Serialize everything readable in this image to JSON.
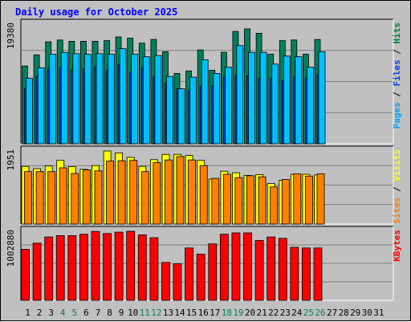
{
  "title": "Daily usage for October 2025",
  "day_labels": [
    "1",
    "2",
    "3",
    "4",
    "5",
    "6",
    "7",
    "8",
    "9",
    "10",
    "11",
    "12",
    "13",
    "14",
    "15",
    "16",
    "17",
    "18",
    "19",
    "20",
    "21",
    "22",
    "23",
    "24",
    "25",
    "26",
    "27",
    "28",
    "29",
    "30",
    "31"
  ],
  "weekend_days": [
    "4",
    "5",
    "11",
    "12",
    "18",
    "19",
    "25",
    "26"
  ],
  "right_axis": {
    "panel1": [
      {
        "text": "Pages",
        "color": "#00a0ff"
      },
      {
        "text": " / ",
        "color": "#000000"
      },
      {
        "text": "Files",
        "color": "#0040ff"
      },
      {
        "text": " / ",
        "color": "#000000"
      },
      {
        "text": "Hits",
        "color": "#008040"
      }
    ],
    "panel2": [
      {
        "text": "Sites",
        "color": "#ff8000"
      },
      {
        "text": " / ",
        "color": "#000000"
      },
      {
        "text": "Visits",
        "color": "#ffff00"
      }
    ],
    "panel3": [
      {
        "text": "KBytes",
        "color": "#ff0000"
      }
    ]
  },
  "colors": {
    "hits": "#00805c",
    "files": "#0040ff",
    "pages": "#00c0ff",
    "visits": "#ffff00",
    "sites": "#ff8000",
    "kbytes": "#ff0000",
    "title": "#0000ff",
    "weekend": "#00805c",
    "background": "#c0c0c0"
  },
  "chart_data": [
    {
      "type": "bar",
      "ylabel": "19380",
      "ylim": [
        0,
        19380
      ],
      "categories": [
        "1",
        "2",
        "3",
        "4",
        "5",
        "6",
        "7",
        "8",
        "9",
        "10",
        "11",
        "12",
        "13",
        "14",
        "15",
        "16",
        "17",
        "18",
        "19",
        "20",
        "21",
        "22",
        "23",
        "24",
        "25",
        "26"
      ],
      "series": [
        {
          "name": "Hits",
          "values": [
            12600,
            14400,
            16500,
            16800,
            16600,
            16600,
            16600,
            16700,
            17300,
            17100,
            16300,
            16900,
            14900,
            11400,
            11800,
            15200,
            11900,
            14800,
            18200,
            18600,
            17900,
            14500,
            16700,
            16800,
            14500,
            16900
          ]
        },
        {
          "name": "Files",
          "values": [
            9000,
            10900,
            12000,
            12400,
            11900,
            12100,
            12500,
            11900,
            12800,
            11600,
            12300,
            10800,
            9800,
            8900,
            8600,
            9300,
            9400,
            10900,
            11100,
            11000,
            10600,
            10600,
            10200,
            10800,
            10600,
            11200
          ]
        },
        {
          "name": "Pages",
          "values": [
            10600,
            12300,
            14500,
            14800,
            14600,
            14500,
            14600,
            14500,
            15400,
            14500,
            14100,
            14300,
            10900,
            8900,
            10800,
            13600,
            11400,
            12400,
            15900,
            14800,
            14800,
            12900,
            14200,
            14100,
            12400,
            14900
          ]
        }
      ]
    },
    {
      "type": "bar",
      "ylabel": "1951",
      "ylim": [
        0,
        1951
      ],
      "categories": [
        "1",
        "2",
        "3",
        "4",
        "5",
        "6",
        "7",
        "8",
        "9",
        "10",
        "11",
        "12",
        "13",
        "14",
        "15",
        "16",
        "17",
        "18",
        "19",
        "20",
        "21",
        "22",
        "23",
        "24",
        "25",
        "26"
      ],
      "series": [
        {
          "name": "Visits",
          "values": [
            1540,
            1480,
            1550,
            1700,
            1530,
            1460,
            1560,
            1950,
            1900,
            1780,
            1540,
            1720,
            1860,
            1860,
            1830,
            1700,
            1200,
            1410,
            1370,
            1300,
            1320,
            1080,
            1170,
            1330,
            1330,
            1310
          ]
        },
        {
          "name": "Sites",
          "values": [
            1400,
            1400,
            1400,
            1500,
            1350,
            1450,
            1420,
            1680,
            1690,
            1700,
            1400,
            1640,
            1710,
            1800,
            1710,
            1560,
            1220,
            1330,
            1240,
            1290,
            1260,
            990,
            1190,
            1340,
            1280,
            1340
          ]
        }
      ]
    },
    {
      "type": "bar",
      "ylabel": "1002880",
      "ylim": [
        0,
        1002880
      ],
      "categories": [
        "1",
        "2",
        "3",
        "4",
        "5",
        "6",
        "7",
        "8",
        "9",
        "10",
        "11",
        "12",
        "13",
        "14",
        "15",
        "16",
        "17",
        "18",
        "19",
        "20",
        "21",
        "22",
        "23",
        "24",
        "25",
        "26"
      ],
      "series": [
        {
          "name": "KBytes",
          "values": [
            740000,
            830000,
            920000,
            940000,
            940000,
            960000,
            1000000,
            970000,
            990000,
            1002880,
            950000,
            910000,
            550000,
            530000,
            760000,
            670000,
            820000,
            960000,
            980000,
            980000,
            870000,
            920000,
            900000,
            770000,
            760000,
            760000
          ]
        }
      ]
    }
  ]
}
